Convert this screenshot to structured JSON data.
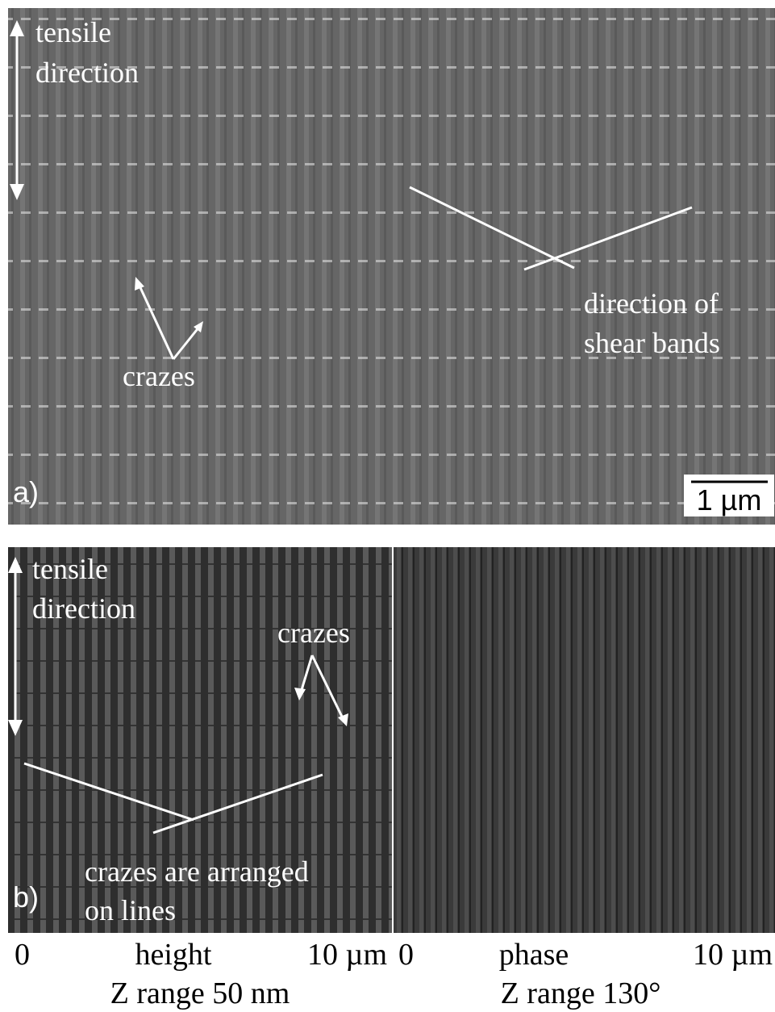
{
  "panel_a": {
    "label": "a)",
    "scale_bar": "1 µm",
    "tensile_direction": [
      "tensile",
      "direction"
    ],
    "crazes": "crazes",
    "shear_bands": [
      "direction of",
      "shear bands"
    ]
  },
  "panel_b": {
    "label": "b)",
    "tensile_direction": [
      "tensile",
      "direction"
    ],
    "crazes": "crazes",
    "crazes_lines": [
      "crazes are arranged",
      "on lines"
    ]
  },
  "captions": {
    "height": {
      "start": "0",
      "name": "height",
      "end": "10 µm",
      "z_range": "Z range 50 nm"
    },
    "phase": {
      "start": "0",
      "name": "phase",
      "end": "10 µm",
      "z_range": "Z range 130°"
    }
  }
}
